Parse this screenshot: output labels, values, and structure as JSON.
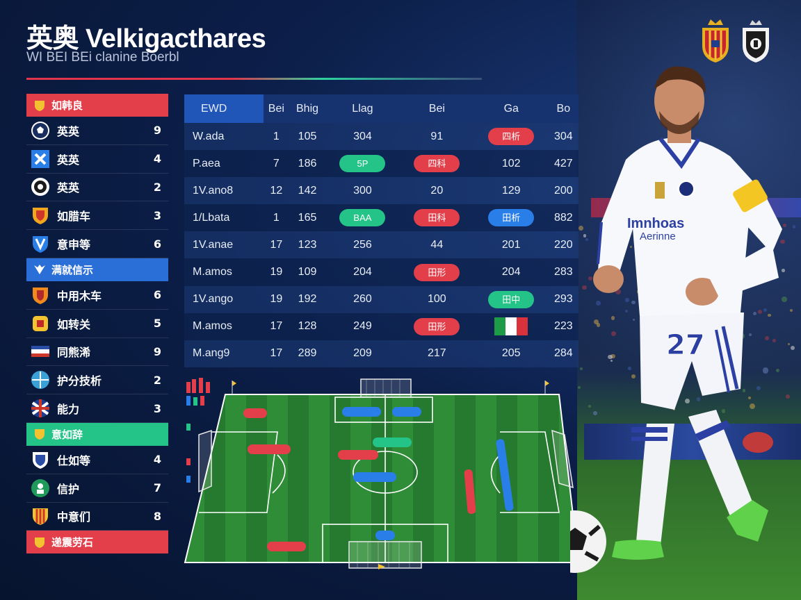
{
  "header": {
    "title": "英奥 Velkigacthares",
    "subtitle": "WI BEI BEi clanine Boerbl"
  },
  "colors": {
    "accent_red": "#e23f4a",
    "accent_green": "#24c388",
    "accent_blue": "#2a7ee8",
    "background": "#0c1f4a"
  },
  "crests": [
    "crest-red-gold-icon",
    "crest-white-black-icon"
  ],
  "sidebar": {
    "groups": [
      {
        "label": "如韩良",
        "color": "#e23f4a",
        "icon": "shield-icon",
        "teams": [
          {
            "name": "英英",
            "value": "9",
            "logo": "soccer-ball-icon"
          },
          {
            "name": "英英",
            "value": "4",
            "logo": "blue-badge-icon"
          },
          {
            "name": "英英",
            "value": "2",
            "logo": "round-badge-icon"
          },
          {
            "name": "如腊车",
            "value": "3",
            "logo": "gold-shield-icon"
          },
          {
            "name": "意申等",
            "value": "6",
            "logo": "blue-v-shield-icon"
          }
        ]
      },
      {
        "label": "满就信示",
        "color": "#2a6fd8",
        "icon": "wing-icon",
        "teams": [
          {
            "name": "中用木车",
            "value": "6",
            "logo": "orange-shield-icon"
          },
          {
            "name": "如转关",
            "value": "5",
            "logo": "yellow-crest-icon"
          },
          {
            "name": "同熊浠",
            "value": "9",
            "logo": "striped-flag-icon"
          },
          {
            "name": "护分技析",
            "value": "2",
            "logo": "globe-badge-icon"
          },
          {
            "name": "能力",
            "value": "3",
            "logo": "union-flag-icon"
          }
        ]
      },
      {
        "label": "意如辞",
        "color": "#24c388",
        "icon": "shield-icon",
        "teams": [
          {
            "name": "仕如等",
            "value": "4",
            "logo": "blue-crest-icon"
          },
          {
            "name": "信护",
            "value": "7",
            "logo": "green-round-icon"
          },
          {
            "name": "中意们",
            "value": "8",
            "logo": "striped-shield-icon"
          }
        ]
      },
      {
        "label": "递震劳石",
        "color": "#e23f4a",
        "icon": "shield-icon",
        "teams": []
      }
    ]
  },
  "stats": {
    "headers": [
      "EWD",
      "Bei",
      "Bhig",
      "Llag",
      "Bei",
      "Ga",
      "Bo"
    ],
    "rows": [
      [
        {
          "t": "W.ada"
        },
        {
          "t": "1"
        },
        {
          "t": "105"
        },
        {
          "t": "304"
        },
        {
          "t": "91"
        },
        {
          "t": "四析",
          "pill": "red"
        },
        {
          "t": "304"
        }
      ],
      [
        {
          "t": "P.aea"
        },
        {
          "t": "7"
        },
        {
          "t": "186"
        },
        {
          "t": "5P",
          "pill": "green"
        },
        {
          "t": "四科",
          "pill": "red"
        },
        {
          "t": "102"
        },
        {
          "t": "427"
        }
      ],
      [
        {
          "t": "1V.ano8"
        },
        {
          "t": "12"
        },
        {
          "t": "142"
        },
        {
          "t": "300"
        },
        {
          "t": "20"
        },
        {
          "t": "129"
        },
        {
          "t": "200"
        }
      ],
      [
        {
          "t": "1/Lbata"
        },
        {
          "t": "1"
        },
        {
          "t": "165"
        },
        {
          "t": "BAA",
          "pill": "green"
        },
        {
          "t": "田科",
          "pill": "red"
        },
        {
          "t": "田析",
          "pill": "blue"
        },
        {
          "t": "882"
        }
      ],
      [
        {
          "t": "1V.anae"
        },
        {
          "t": "17"
        },
        {
          "t": "123"
        },
        {
          "t": "256"
        },
        {
          "t": "44"
        },
        {
          "t": "201"
        },
        {
          "t": "220"
        }
      ],
      [
        {
          "t": "M.amos"
        },
        {
          "t": "19"
        },
        {
          "t": "109"
        },
        {
          "t": "204"
        },
        {
          "t": "田形",
          "pill": "red"
        },
        {
          "t": "204"
        },
        {
          "t": "283"
        }
      ],
      [
        {
          "t": "1V.ango"
        },
        {
          "t": "19"
        },
        {
          "t": "192"
        },
        {
          "t": "260"
        },
        {
          "t": "100"
        },
        {
          "t": "田中",
          "pill": "green"
        },
        {
          "t": "293"
        }
      ],
      [
        {
          "t": "M.amos"
        },
        {
          "t": "17"
        },
        {
          "t": "128"
        },
        {
          "t": "249"
        },
        {
          "t": "田形",
          "pill": "red"
        },
        {
          "t": "",
          "flag": "italy-flag-icon"
        },
        {
          "t": "223"
        }
      ],
      [
        {
          "t": "M.ang9"
        },
        {
          "t": "17"
        },
        {
          "t": "289"
        },
        {
          "t": "209"
        },
        {
          "t": "217"
        },
        {
          "t": "205"
        },
        {
          "t": "284"
        }
      ]
    ]
  },
  "player": {
    "shirt_text": "Imnhoas",
    "shirt_sub": "Aerinne",
    "number": "27"
  }
}
